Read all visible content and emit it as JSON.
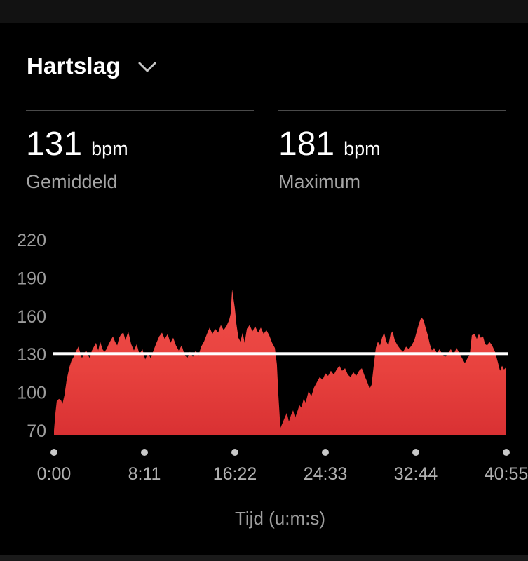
{
  "header": {
    "title": "Hartslag",
    "dropdown_icon": "chevron-down-icon"
  },
  "stats": [
    {
      "value": "131",
      "unit": "bpm",
      "label": "Gemiddeld"
    },
    {
      "value": "181",
      "unit": "bpm",
      "label": "Maximum"
    }
  ],
  "colors": {
    "background": "#000000",
    "top_bar": "#121212",
    "bottom_bar": "#1a1a1a",
    "area_red_top": "#f04e4b",
    "area_red_mid": "#e8423e",
    "area_red_bottom": "#d93133",
    "average_line": "#ffffff",
    "axis_text": "#9c9c9c",
    "xaxis_text": "#b0b0b0",
    "tick_dot": "#c9c9c9",
    "divider": "#4a4a4a",
    "label_text": "#a6a6a6"
  },
  "chart_data": {
    "type": "area",
    "title": "Hartslag",
    "xlabel": "Tijd (u:m:s)",
    "ylabel": "bpm",
    "x_unit": "seconds",
    "y_unit": "bpm",
    "ylim": [
      70,
      220
    ],
    "xlim_seconds": [
      0,
      2455
    ],
    "grid": false,
    "yticks": [
      220,
      190,
      160,
      130,
      100,
      70
    ],
    "xticks": [
      {
        "t": 0,
        "label": "0:00"
      },
      {
        "t": 491,
        "label": "8:11"
      },
      {
        "t": 982,
        "label": "16:22"
      },
      {
        "t": 1473,
        "label": "24:33"
      },
      {
        "t": 1964,
        "label": "32:44"
      },
      {
        "t": 2455,
        "label": "40:55"
      }
    ],
    "average_bpm": 131,
    "max_bpm": 181,
    "series": [
      {
        "name": "Hartslag",
        "points": [
          [
            0,
            70
          ],
          [
            8,
            84
          ],
          [
            15,
            93
          ],
          [
            27,
            95
          ],
          [
            38,
            94
          ],
          [
            46,
            91
          ],
          [
            57,
            98
          ],
          [
            69,
            110
          ],
          [
            84,
            120
          ],
          [
            95,
            125
          ],
          [
            107,
            128
          ],
          [
            118,
            132
          ],
          [
            133,
            136
          ],
          [
            145,
            130
          ],
          [
            152,
            127
          ],
          [
            164,
            131
          ],
          [
            175,
            133
          ],
          [
            186,
            129
          ],
          [
            194,
            127
          ],
          [
            206,
            133
          ],
          [
            217,
            136
          ],
          [
            228,
            139
          ],
          [
            240,
            133
          ],
          [
            251,
            140
          ],
          [
            263,
            134
          ],
          [
            274,
            132
          ],
          [
            285,
            134
          ],
          [
            297,
            138
          ],
          [
            308,
            141
          ],
          [
            320,
            144
          ],
          [
            331,
            140
          ],
          [
            343,
            137
          ],
          [
            354,
            143
          ],
          [
            365,
            146
          ],
          [
            377,
            147
          ],
          [
            388,
            141
          ],
          [
            403,
            148
          ],
          [
            419,
            138
          ],
          [
            434,
            133
          ],
          [
            449,
            138
          ],
          [
            464,
            130
          ],
          [
            480,
            134
          ],
          [
            495,
            126
          ],
          [
            510,
            131
          ],
          [
            525,
            127
          ],
          [
            540,
            133
          ],
          [
            556,
            139
          ],
          [
            571,
            144
          ],
          [
            586,
            147
          ],
          [
            601,
            142
          ],
          [
            617,
            146
          ],
          [
            632,
            139
          ],
          [
            647,
            143
          ],
          [
            662,
            137
          ],
          [
            677,
            133
          ],
          [
            693,
            137
          ],
          [
            708,
            130
          ],
          [
            723,
            127
          ],
          [
            738,
            132
          ],
          [
            754,
            128
          ],
          [
            769,
            133
          ],
          [
            784,
            129
          ],
          [
            799,
            136
          ],
          [
            814,
            140
          ],
          [
            830,
            146
          ],
          [
            845,
            151
          ],
          [
            860,
            146
          ],
          [
            875,
            150
          ],
          [
            891,
            147
          ],
          [
            906,
            153
          ],
          [
            921,
            149
          ],
          [
            936,
            152
          ],
          [
            951,
            157
          ],
          [
            959,
            162
          ],
          [
            967,
            181
          ],
          [
            974,
            174
          ],
          [
            982,
            166
          ],
          [
            990,
            154
          ],
          [
            1001,
            143
          ],
          [
            1012,
            140
          ],
          [
            1024,
            147
          ],
          [
            1035,
            139
          ],
          [
            1047,
            150
          ],
          [
            1062,
            153
          ],
          [
            1077,
            148
          ],
          [
            1092,
            152
          ],
          [
            1108,
            147
          ],
          [
            1123,
            151
          ],
          [
            1138,
            146
          ],
          [
            1153,
            149
          ],
          [
            1168,
            145
          ],
          [
            1184,
            139
          ],
          [
            1199,
            135
          ],
          [
            1210,
            122
          ],
          [
            1218,
            98
          ],
          [
            1229,
            72
          ],
          [
            1241,
            76
          ],
          [
            1252,
            80
          ],
          [
            1264,
            84
          ],
          [
            1275,
            77
          ],
          [
            1286,
            82
          ],
          [
            1298,
            86
          ],
          [
            1309,
            80
          ],
          [
            1321,
            85
          ],
          [
            1332,
            90
          ],
          [
            1343,
            88
          ],
          [
            1355,
            95
          ],
          [
            1366,
            92
          ],
          [
            1382,
            101
          ],
          [
            1397,
            97
          ],
          [
            1412,
            104
          ],
          [
            1427,
            108
          ],
          [
            1442,
            112
          ],
          [
            1458,
            110
          ],
          [
            1473,
            115
          ],
          [
            1488,
            113
          ],
          [
            1503,
            117
          ],
          [
            1519,
            114
          ],
          [
            1534,
            118
          ],
          [
            1549,
            121
          ],
          [
            1564,
            117
          ],
          [
            1580,
            119
          ],
          [
            1595,
            114
          ],
          [
            1610,
            112
          ],
          [
            1625,
            116
          ],
          [
            1640,
            113
          ],
          [
            1656,
            117
          ],
          [
            1671,
            119
          ],
          [
            1686,
            113
          ],
          [
            1701,
            108
          ],
          [
            1713,
            103
          ],
          [
            1724,
            106
          ],
          [
            1735,
            120
          ],
          [
            1747,
            135
          ],
          [
            1758,
            140
          ],
          [
            1770,
            137
          ],
          [
            1781,
            143
          ],
          [
            1792,
            147
          ],
          [
            1804,
            140
          ],
          [
            1815,
            137
          ],
          [
            1827,
            146
          ],
          [
            1838,
            148
          ],
          [
            1850,
            141
          ],
          [
            1865,
            137
          ],
          [
            1880,
            134
          ],
          [
            1895,
            132
          ],
          [
            1911,
            136
          ],
          [
            1926,
            134
          ],
          [
            1941,
            137
          ],
          [
            1956,
            141
          ],
          [
            1971,
            149
          ],
          [
            1983,
            155
          ],
          [
            1994,
            159
          ],
          [
            2006,
            157
          ],
          [
            2017,
            151
          ],
          [
            2029,
            145
          ],
          [
            2040,
            138
          ],
          [
            2051,
            133
          ],
          [
            2063,
            135
          ],
          [
            2078,
            131
          ],
          [
            2093,
            134
          ],
          [
            2108,
            130
          ],
          [
            2124,
            128
          ],
          [
            2139,
            131
          ],
          [
            2154,
            134
          ],
          [
            2169,
            130
          ],
          [
            2185,
            135
          ],
          [
            2200,
            131
          ],
          [
            2215,
            127
          ],
          [
            2230,
            123
          ],
          [
            2245,
            127
          ],
          [
            2257,
            130
          ],
          [
            2268,
            145
          ],
          [
            2284,
            146
          ],
          [
            2295,
            142
          ],
          [
            2306,
            146
          ],
          [
            2317,
            143
          ],
          [
            2329,
            144
          ],
          [
            2340,
            138
          ],
          [
            2352,
            137
          ],
          [
            2363,
            140
          ],
          [
            2378,
            137
          ],
          [
            2394,
            132
          ],
          [
            2409,
            124
          ],
          [
            2421,
            117
          ],
          [
            2432,
            121
          ],
          [
            2443,
            118
          ],
          [
            2455,
            120
          ]
        ]
      }
    ]
  }
}
